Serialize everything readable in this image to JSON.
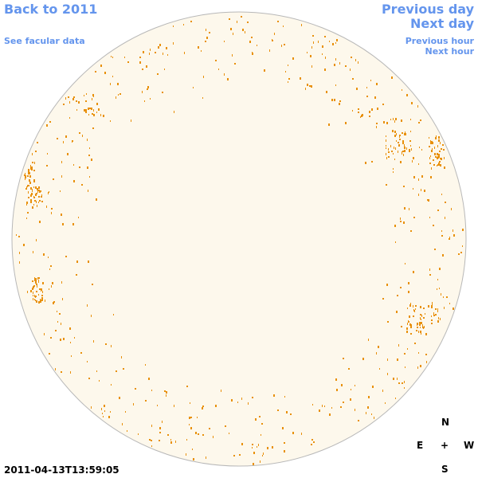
{
  "nav": {
    "back_label": "Back to 2011",
    "facular_label": "See facular data",
    "prev_day_label": "Previous day",
    "next_day_label": "Next day",
    "prev_hour_label": "Previous hour",
    "next_hour_label": "Next hour"
  },
  "compass": {
    "north": "N",
    "east": "E",
    "center": "+",
    "west": "W",
    "south": "S"
  },
  "timestamp": "2011-04-13T13:59:05",
  "colors": {
    "disk_fill": "#fdf8ec",
    "disk_outline": "#b8b8b8",
    "facula": "#e8900a",
    "link": "#6495ed"
  }
}
